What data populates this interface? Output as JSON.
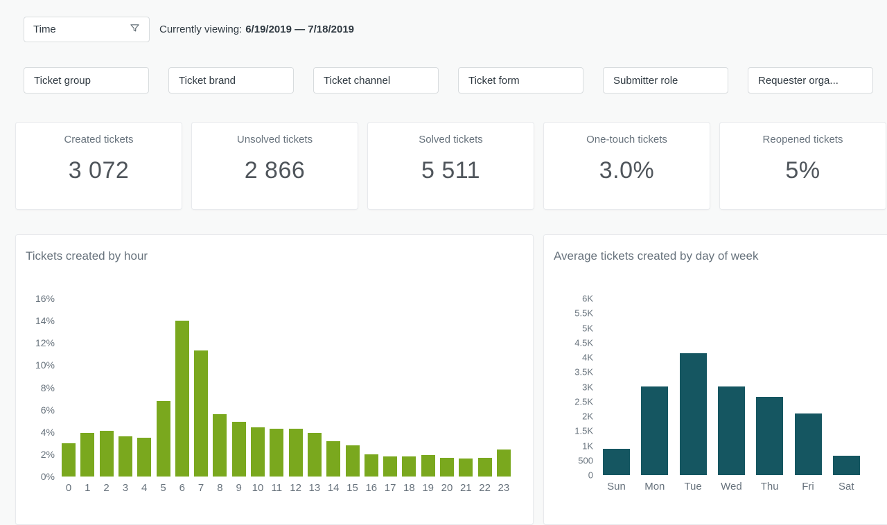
{
  "header": {
    "time_filter_label": "Time",
    "currently_viewing_label": "Currently viewing:",
    "date_range": "6/19/2019 — 7/18/2019"
  },
  "filters": {
    "buttons": [
      "Ticket group",
      "Ticket brand",
      "Ticket channel",
      "Ticket form",
      "Submitter role",
      "Requester orga..."
    ]
  },
  "kpis": [
    {
      "label": "Created tickets",
      "value": "3 072"
    },
    {
      "label": "Unsolved tickets",
      "value": "2 866"
    },
    {
      "label": "Solved tickets",
      "value": "5 511"
    },
    {
      "label": "One-touch tickets",
      "value": "3.0%"
    },
    {
      "label": "Reopened tickets",
      "value": "5%"
    }
  ],
  "chart_data": [
    {
      "type": "bar",
      "title": "Tickets created by hour",
      "categories": [
        "0",
        "1",
        "2",
        "3",
        "4",
        "5",
        "6",
        "7",
        "8",
        "9",
        "10",
        "11",
        "12",
        "13",
        "14",
        "15",
        "16",
        "17",
        "18",
        "19",
        "20",
        "21",
        "22",
        "23"
      ],
      "values": [
        3,
        3.9,
        4.1,
        3.6,
        3.5,
        6.8,
        14,
        11.3,
        5.6,
        4.9,
        4.4,
        4.3,
        4.3,
        3.9,
        3.2,
        2.8,
        2,
        1.8,
        1.8,
        1.9,
        1.7,
        1.6,
        1.7,
        2.4
      ],
      "unit": "%",
      "xlabel": "",
      "ylabel": "",
      "ylim": [
        0,
        16
      ],
      "grid": false,
      "legend": "none",
      "bar_color": "#7aa81e",
      "y_ticks": [
        {
          "label": "16%",
          "value": 16
        },
        {
          "label": "14%",
          "value": 14
        },
        {
          "label": "12%",
          "value": 12
        },
        {
          "label": "10%",
          "value": 10
        },
        {
          "label": "8%",
          "value": 8
        },
        {
          "label": "6%",
          "value": 6
        },
        {
          "label": "4%",
          "value": 4
        },
        {
          "label": "2%",
          "value": 2
        },
        {
          "label": "0%",
          "value": 0
        }
      ]
    },
    {
      "type": "bar",
      "title": "Average tickets created by day of week",
      "categories": [
        "Sun",
        "Mon",
        "Tue",
        "Wed",
        "Thu",
        "Fri",
        "Sat"
      ],
      "values": [
        900,
        3000,
        4150,
        3000,
        2650,
        2100,
        650
      ],
      "unit": "",
      "xlabel": "",
      "ylabel": "",
      "ylim": [
        0,
        6000
      ],
      "grid": false,
      "legend": "none",
      "bar_color": "#155661",
      "y_ticks": [
        {
          "label": "6K",
          "value": 6000
        },
        {
          "label": "5.5K",
          "value": 5500
        },
        {
          "label": "5K",
          "value": 5000
        },
        {
          "label": "4.5K",
          "value": 4500
        },
        {
          "label": "4K",
          "value": 4000
        },
        {
          "label": "3.5K",
          "value": 3500
        },
        {
          "label": "3K",
          "value": 3000
        },
        {
          "label": "2.5K",
          "value": 2500
        },
        {
          "label": "2K",
          "value": 2000
        },
        {
          "label": "1.5K",
          "value": 1500
        },
        {
          "label": "1K",
          "value": 1000
        },
        {
          "label": "500",
          "value": 500
        },
        {
          "label": "0",
          "value": 0
        }
      ]
    }
  ],
  "theme": {
    "page_bg": "#f8f9f9",
    "card_bg": "#ffffff",
    "card_border": "#e8eaed",
    "button_border": "#d8dcde",
    "text_dark": "#2f3941",
    "text_gray": "#68737d",
    "kpi_value_color": "#4f555b",
    "green": "#7aa81e",
    "teal": "#155661"
  }
}
